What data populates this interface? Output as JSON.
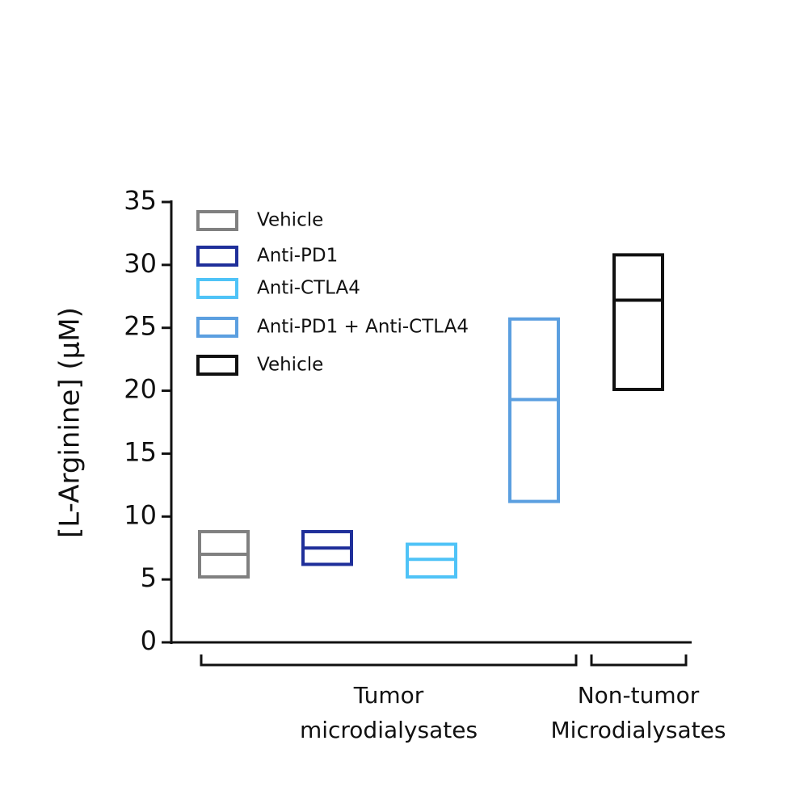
{
  "chart_data": {
    "type": "floating-bar",
    "y_label": "[L-Arginine] (μM)",
    "ylim": [
      0,
      35
    ],
    "yticks": [
      0,
      5,
      10,
      15,
      20,
      25,
      30,
      35
    ],
    "series": [
      {
        "name": "Vehicle",
        "color": "#808080",
        "low": 5.2,
        "mean": 7.0,
        "high": 8.8
      },
      {
        "name": "Anti-PD1",
        "color": "#1f2f9a",
        "low": 6.2,
        "mean": 7.5,
        "high": 8.8
      },
      {
        "name": "Anti-CTLA4",
        "color": "#4fc3f7",
        "low": 5.2,
        "mean": 6.6,
        "high": 7.8
      },
      {
        "name": "Anti-PD1 + Anti-CTLA4",
        "color": "#5b9fe0",
        "low": 11.2,
        "mean": 19.3,
        "high": 25.7
      },
      {
        "name": "Vehicle",
        "color": "#111111",
        "low": 20.1,
        "mean": 27.2,
        "high": 30.8
      }
    ],
    "groups": [
      {
        "label": [
          "Tumor",
          "microdialysates"
        ]
      },
      {
        "label": [
          "Non-tumor",
          "Microdialysates"
        ]
      }
    ]
  }
}
